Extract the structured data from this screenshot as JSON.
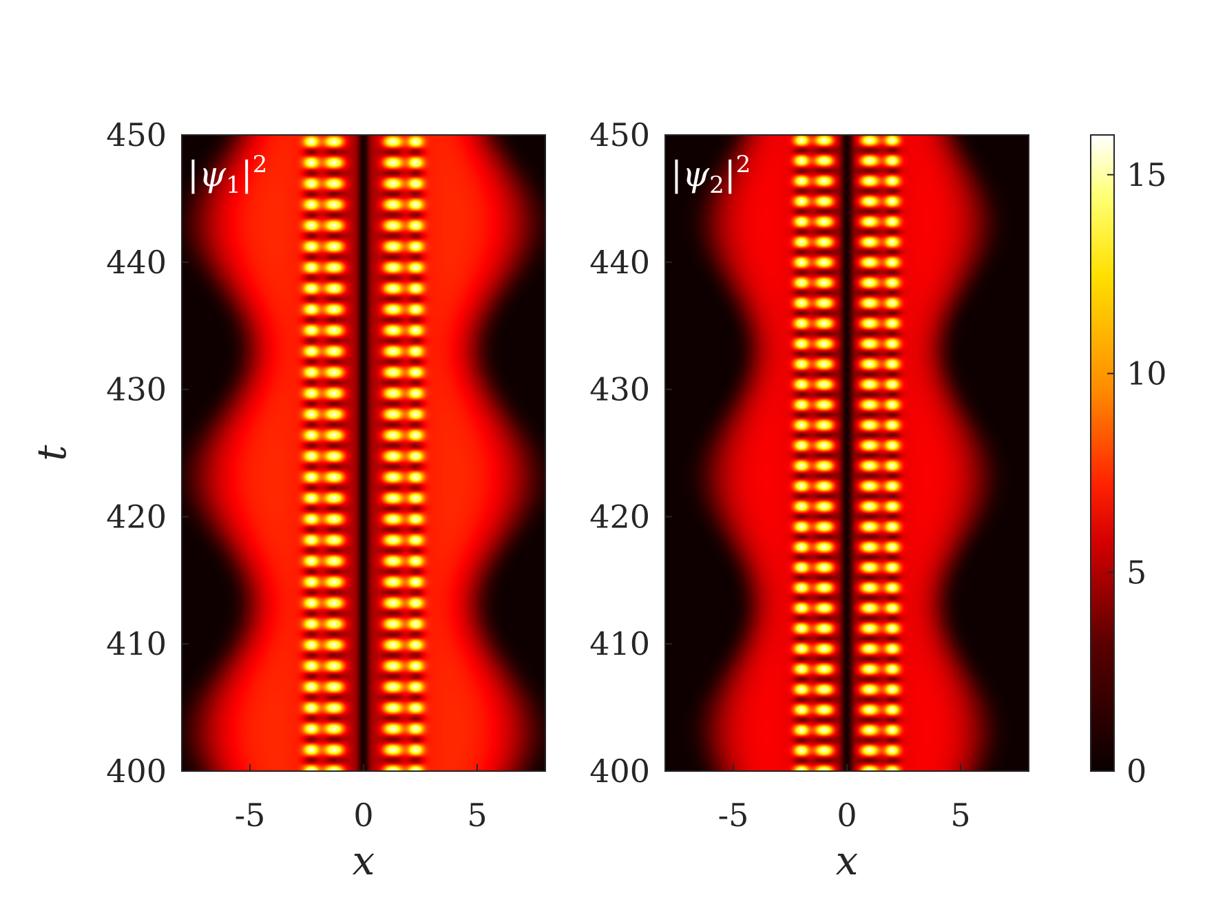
{
  "chart_data": [
    {
      "type": "heatmap",
      "panel_label": {
        "prefix": "|",
        "symbol": "ψ",
        "subscript": "1",
        "suffix": "|",
        "superscript": "2"
      },
      "xlabel": "x",
      "ylabel": "t",
      "xlim": [
        -8,
        8
      ],
      "ylim": [
        400,
        450
      ],
      "xticks": [
        -5,
        0,
        5
      ],
      "xtick_labels": [
        "-5",
        "0",
        "5"
      ],
      "yticks": [
        400,
        410,
        420,
        430,
        440,
        450
      ],
      "ytick_labels": [
        "400",
        "410",
        "420",
        "430",
        "440",
        "450"
      ],
      "field": {
        "description_of_structure": "two central columns of bright fringes at x≈-1.3 and x≈+1.3, dark node at x=0, broad glow extending to |x|≈6",
        "fringe_columns_x": [
          -2.3,
          -1.3,
          1.3,
          2.3
        ],
        "fringe_period_t": 1.65,
        "halo_width_x": 6.0,
        "halo_peak_intensity": 7,
        "fringe_peak_intensity": 16
      }
    },
    {
      "type": "heatmap",
      "panel_label": {
        "prefix": "|",
        "symbol": "ψ",
        "subscript": "2",
        "suffix": "|",
        "superscript": "2"
      },
      "xlabel": "x",
      "ylabel": "",
      "xlim": [
        -8,
        8
      ],
      "ylim": [
        400,
        450
      ],
      "xticks": [
        -5,
        0,
        5
      ],
      "xtick_labels": [
        "-5",
        "0",
        "5"
      ],
      "yticks": [
        400,
        410,
        420,
        430,
        440,
        450
      ],
      "ytick_labels": [
        "400",
        "410",
        "420",
        "430",
        "440",
        "450"
      ],
      "field": {
        "description_of_structure": "fringe columns at x≈-1.0 and x≈+1.0 with dark node at x=0, halo breathing in width with period ~20 in t",
        "fringe_columns_x": [
          -2.0,
          -1.0,
          1.0,
          2.0
        ],
        "fringe_period_t": 1.6,
        "halo_width_x": 5.0,
        "halo_peak_intensity": 6,
        "fringe_peak_intensity": 16
      }
    }
  ],
  "colorbar": {
    "colormap": "hot",
    "range": [
      0,
      16
    ],
    "ticks": [
      0,
      5,
      10,
      15
    ],
    "tick_labels": [
      "0",
      "5",
      "10",
      "15"
    ]
  }
}
